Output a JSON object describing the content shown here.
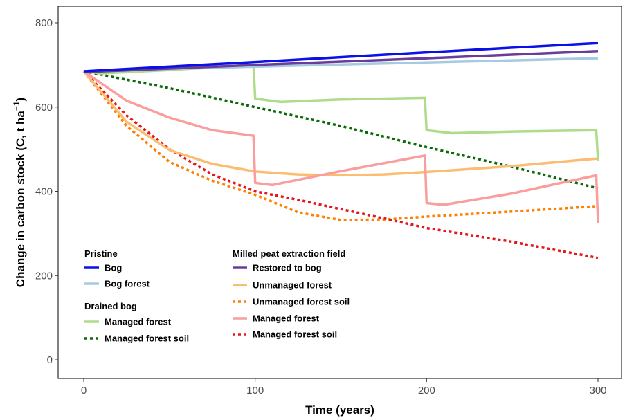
{
  "chart_data": {
    "type": "line",
    "xlabel": "Time (years)",
    "ylabel_main": "Change in carbon stock (C, t ha",
    "ylabel_sup": "−1",
    "ylabel_close": ")",
    "xlim": [
      0,
      300
    ],
    "ylim": [
      0,
      800
    ],
    "x_ticks": [
      0,
      100,
      200,
      300
    ],
    "x_tick_labels": [
      "0",
      "100",
      "200",
      "300"
    ],
    "y_ticks": [
      0,
      200,
      400,
      600,
      800
    ],
    "y_tick_labels": [
      "0",
      "200",
      "400",
      "600",
      "800"
    ],
    "grid": false,
    "legend_groups": [
      {
        "title": "Pristine",
        "items": [
          0,
          1
        ]
      },
      {
        "title": "Drained bog",
        "items": [
          2,
          3
        ]
      },
      {
        "title": "Milled peat extraction field",
        "items": [
          4,
          5,
          6,
          7,
          8
        ]
      }
    ],
    "series": [
      {
        "name": "Bog",
        "color": "#0a10e8",
        "dashed": false,
        "x": [
          0,
          100,
          200,
          300
        ],
        "y": [
          685,
          707,
          730,
          752
        ]
      },
      {
        "name": "Bog forest",
        "color": "#a6cbe0",
        "dashed": false,
        "x": [
          0,
          100,
          200,
          300
        ],
        "y": [
          685,
          696,
          706,
          716
        ]
      },
      {
        "name": "Managed forest",
        "color": "#aedc8a",
        "dashed": false,
        "x": [
          0,
          10,
          50,
          99,
          100,
          115,
          150,
          199,
          200,
          215,
          250,
          299,
          300
        ],
        "y": [
          685,
          680,
          688,
          700,
          620,
          612,
          618,
          622,
          545,
          538,
          542,
          545,
          472
        ]
      },
      {
        "name": "Managed forest soil",
        "color": "#0a6a0a",
        "dashed": true,
        "x": [
          0,
          50,
          100,
          150,
          200,
          250,
          300
        ],
        "y": [
          685,
          645,
          600,
          555,
          505,
          458,
          407
        ]
      },
      {
        "name": "Restored to bog",
        "color": "#6a3d9a",
        "dashed": false,
        "x": [
          0,
          100,
          200,
          300
        ],
        "y": [
          683,
          700,
          716,
          733
        ]
      },
      {
        "name": "Unmanaged forest",
        "color": "#fbbd72",
        "dashed": false,
        "x": [
          0,
          25,
          50,
          75,
          100,
          125,
          150,
          175,
          200,
          250,
          300
        ],
        "y": [
          685,
          565,
          498,
          465,
          447,
          440,
          438,
          440,
          446,
          460,
          478
        ]
      },
      {
        "name": "Unmanaged forest soil",
        "color": "#ff7f00",
        "dashed": true,
        "x": [
          0,
          25,
          50,
          75,
          100,
          125,
          150,
          175,
          200,
          250,
          300
        ],
        "y": [
          685,
          555,
          470,
          425,
          392,
          350,
          332,
          333,
          340,
          352,
          365
        ]
      },
      {
        "name": "Managed forest",
        "color": "#f99e9c",
        "dashed": false,
        "x": [
          0,
          25,
          50,
          75,
          99,
          100,
          110,
          150,
          199,
          200,
          210,
          250,
          299,
          300
        ],
        "y": [
          685,
          615,
          575,
          545,
          532,
          420,
          415,
          448,
          485,
          372,
          368,
          395,
          438,
          325
        ]
      },
      {
        "name": "Managed forest soil",
        "color": "#e3181c",
        "dashed": true,
        "x": [
          0,
          25,
          50,
          75,
          100,
          125,
          150,
          175,
          200,
          250,
          300
        ],
        "y": [
          685,
          580,
          500,
          440,
          400,
          380,
          358,
          336,
          313,
          280,
          242
        ]
      }
    ]
  }
}
